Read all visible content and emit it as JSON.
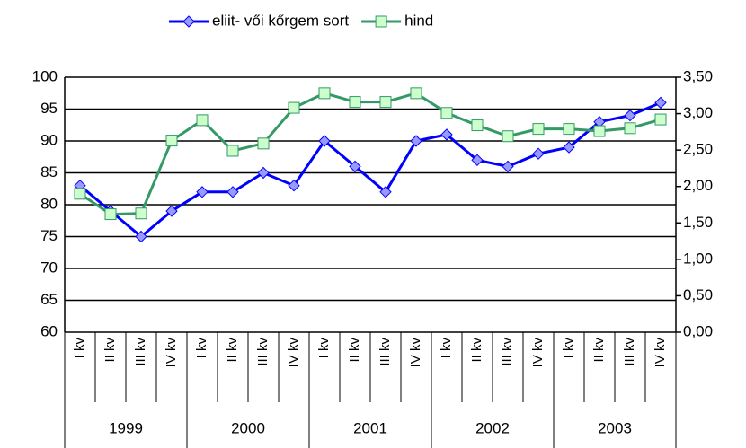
{
  "chart_data": {
    "type": "line",
    "categories": [
      "I kv",
      "II kv",
      "III kv",
      "IV kv",
      "I kv",
      "II kv",
      "III kv",
      "IV kv",
      "I kv",
      "II kv",
      "III kv",
      "IV kv",
      "I kv",
      "II kv",
      "III kv",
      "IV kv",
      "I kv",
      "II kv",
      "III kv",
      "IV kv"
    ],
    "years": [
      "1999",
      "2000",
      "2001",
      "2002",
      "2003"
    ],
    "series": [
      {
        "name": "eliit- vői kőrgem sort",
        "color": "#0000ff",
        "marker_fill": "#9999ff",
        "marker": "diamond",
        "values": [
          83,
          79,
          75,
          79,
          82,
          82,
          85,
          83,
          90,
          86,
          82,
          90,
          91,
          87,
          86,
          88,
          89,
          93,
          94,
          96
        ]
      },
      {
        "name": "hind",
        "color": "#339966",
        "marker_fill": "#ccffcc",
        "marker": "square",
        "axis": "y2",
        "values": [
          1.9,
          1.62,
          1.63,
          2.63,
          2.91,
          2.49,
          2.59,
          3.08,
          3.28,
          3.16,
          3.16,
          3.28,
          3.01,
          2.84,
          2.69,
          2.79,
          2.79,
          2.76,
          2.8,
          2.92
        ]
      }
    ],
    "ylim": [
      60,
      100
    ],
    "yticks": [
      60,
      65,
      70,
      75,
      80,
      85,
      90,
      95,
      100
    ],
    "y2lim": [
      0,
      3.5
    ],
    "y2ticks": [
      {
        "value": 0,
        "label": "0,00"
      },
      {
        "value": 0.5,
        "label": "0,50"
      },
      {
        "value": 1,
        "label": "1,00"
      },
      {
        "value": 1.5,
        "label": "1,50"
      },
      {
        "value": 2,
        "label": "2,00"
      },
      {
        "value": 2.5,
        "label": "2,50"
      },
      {
        "value": 3,
        "label": "3,00"
      },
      {
        "value": 3.5,
        "label": "3,50"
      }
    ],
    "grid": true,
    "legend": "top"
  }
}
